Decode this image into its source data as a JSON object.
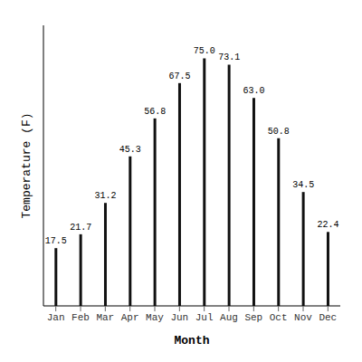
{
  "chart_data": {
    "type": "bar",
    "categories": [
      "Jan",
      "Feb",
      "Mar",
      "Apr",
      "May",
      "Jun",
      "Jul",
      "Aug",
      "Sep",
      "Oct",
      "Nov",
      "Dec"
    ],
    "values": [
      17.5,
      21.7,
      31.2,
      45.3,
      56.8,
      67.5,
      75.0,
      73.1,
      63.0,
      50.8,
      34.5,
      22.4
    ],
    "value_labels": [
      "17.5",
      "21.7",
      "31.2",
      "45.3",
      "56.8",
      "67.5",
      "75.0",
      "73.1",
      "63.0",
      "50.8",
      "34.5",
      "22.4"
    ],
    "color": "#111111",
    "xlabel": "Month",
    "ylabel": "Temperature (F)",
    "ylim": [
      0,
      85
    ],
    "data_labels": true,
    "tick_labels": "x",
    "grid": false
  }
}
